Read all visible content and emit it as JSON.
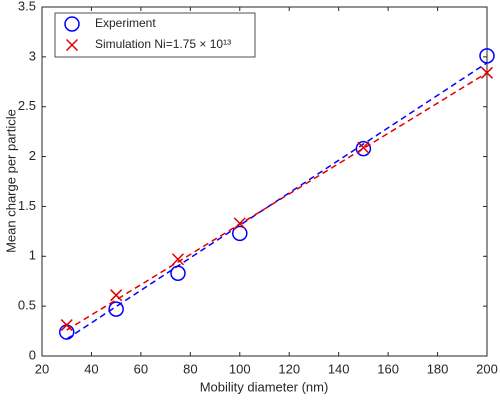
{
  "chart_data": {
    "type": "scatter",
    "xlabel": "Mobility diameter (nm)",
    "ylabel": "Mean charge per particle",
    "xlim": [
      20,
      200
    ],
    "xticks": [
      20,
      40,
      60,
      80,
      100,
      120,
      140,
      160,
      180,
      200
    ],
    "ylim": [
      0,
      3.5
    ],
    "yticks": [
      0,
      0.5,
      1,
      1.5,
      2,
      2.5,
      3,
      3.5
    ],
    "legend": "northwest",
    "series": [
      {
        "name": "Experiment",
        "color": "#0000ff",
        "marker": "circle",
        "x": [
          30,
          50,
          75,
          100,
          150,
          200
        ],
        "values": [
          0.24,
          0.47,
          0.83,
          1.23,
          2.08,
          3.01
        ],
        "fit_x": [
          30,
          200
        ],
        "fit_values": [
          0.17,
          2.94
        ]
      },
      {
        "name": "Simulation Ni=1.75 × 10¹³",
        "color": "#e00000",
        "marker": "cross",
        "x": [
          30,
          50,
          75,
          100,
          150,
          200
        ],
        "values": [
          0.31,
          0.61,
          0.97,
          1.33,
          2.09,
          2.84
        ],
        "fit_x": [
          30,
          200
        ],
        "fit_values": [
          0.26,
          2.84
        ]
      }
    ]
  }
}
